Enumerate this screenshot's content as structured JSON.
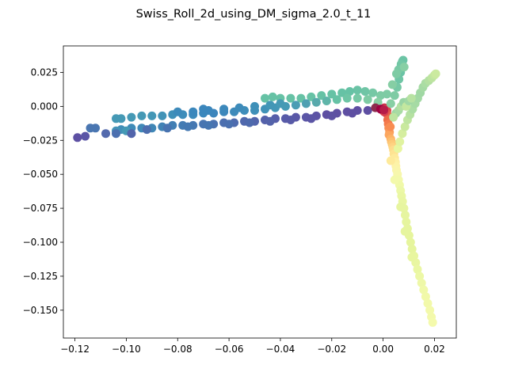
{
  "chart_data": {
    "type": "scatter",
    "title": "Swiss_Roll_2d_using_DM_sigma_2.0_t_11",
    "xlabel": "",
    "ylabel": "",
    "xlim": [
      -0.1245,
      0.0285
    ],
    "ylim": [
      -0.1705,
      0.0445
    ],
    "grid": false,
    "legend": "none",
    "colormap": "Spectral",
    "xticks": [
      -0.12,
      -0.1,
      -0.08,
      -0.06,
      -0.04,
      -0.02,
      0.0,
      0.02
    ],
    "xtick_labels": [
      "−0.12",
      "−0.10",
      "−0.08",
      "−0.06",
      "−0.04",
      "−0.02",
      "0.00",
      "0.02"
    ],
    "yticks": [
      0.025,
      0.0,
      -0.025,
      -0.05,
      -0.075,
      -0.1,
      -0.125,
      -0.15
    ],
    "ytick_labels": [
      "0.025",
      "0.000",
      "−0.025",
      "−0.050",
      "−0.075",
      "−0.100",
      "−0.125",
      "−0.150"
    ],
    "points": [
      [
        0.0005,
        -0.001,
        "#c7314b"
      ],
      [
        0.001,
        -0.002,
        "#d53e4f"
      ],
      [
        0.0015,
        -0.003,
        "#d8474d"
      ],
      [
        0.0012,
        -0.005,
        "#e0574a"
      ],
      [
        0.002,
        -0.007,
        "#e5604a"
      ],
      [
        0.0018,
        -0.01,
        "#ec6b46"
      ],
      [
        0.002,
        -0.013,
        "#f4794b"
      ],
      [
        0.0022,
        -0.016,
        "#f88c52"
      ],
      [
        0.0025,
        -0.019,
        "#fa9b58"
      ],
      [
        0.0023,
        -0.021,
        "#fca65f"
      ],
      [
        0.003,
        -0.024,
        "#fdb366"
      ],
      [
        0.0032,
        -0.026,
        "#fdbf6f"
      ],
      [
        0.0035,
        -0.028,
        "#fdca78"
      ],
      [
        0.0038,
        -0.03,
        "#fed382"
      ],
      [
        0.004,
        -0.032,
        "#fedc8c"
      ],
      [
        0.0042,
        -0.035,
        "#fee392"
      ],
      [
        0.0045,
        -0.038,
        "#feea9b"
      ],
      [
        0.0048,
        -0.041,
        "#fef0a4"
      ],
      [
        0.005,
        -0.044,
        "#fdf3a8"
      ],
      [
        0.0052,
        -0.047,
        "#faf5ab"
      ],
      [
        0.0056,
        -0.05,
        "#f7f7ad"
      ],
      [
        0.006,
        -0.054,
        "#f3f9ab"
      ],
      [
        0.0064,
        -0.058,
        "#f0f9a9"
      ],
      [
        0.0068,
        -0.062,
        "#ecf8a7"
      ],
      [
        0.0072,
        -0.066,
        "#eaf7a3"
      ],
      [
        0.0076,
        -0.07,
        "#e9f6a2"
      ],
      [
        0.0081,
        -0.075,
        "#e7f5a0"
      ],
      [
        0.0086,
        -0.08,
        "#e6f59f"
      ],
      [
        0.009,
        -0.085,
        "#e6f59e"
      ],
      [
        0.0095,
        -0.09,
        "#e6f59e"
      ],
      [
        0.0101,
        -0.095,
        "#e6f59d"
      ],
      [
        0.0107,
        -0.1,
        "#e6f59d"
      ],
      [
        0.0113,
        -0.105,
        "#e6f59d"
      ],
      [
        0.012,
        -0.11,
        "#e8f69f"
      ],
      [
        0.0127,
        -0.115,
        "#e9f6a1"
      ],
      [
        0.0134,
        -0.12,
        "#eaf7a3"
      ],
      [
        0.0142,
        -0.125,
        "#ecf8a6"
      ],
      [
        0.015,
        -0.13,
        "#eef8a8"
      ],
      [
        0.0158,
        -0.135,
        "#f0f9a9"
      ],
      [
        0.0166,
        -0.14,
        "#f1f9a9"
      ],
      [
        0.0174,
        -0.145,
        "#f2f9aa"
      ],
      [
        0.0182,
        -0.15,
        "#f3f9ab"
      ],
      [
        0.0188,
        -0.155,
        "#f3f9ab"
      ],
      [
        0.0193,
        -0.159,
        "#f4faac"
      ],
      [
        0.0085,
        -0.092,
        "#e6f59e"
      ],
      [
        0.0112,
        -0.111,
        "#e8f69f"
      ],
      [
        0.0068,
        -0.074,
        "#e7f5a0"
      ],
      [
        0.0045,
        -0.054,
        "#f3f9ab"
      ],
      [
        0.003,
        -0.04,
        "#feea9b"
      ],
      [
        0.0004,
        -0.004,
        "#d53e4f"
      ],
      [
        -0.0002,
        -0.003,
        "#d8474d"
      ],
      [
        0.0028,
        -0.015,
        "#f88c52"
      ],
      [
        0.0058,
        -0.031,
        "#e8f69f"
      ],
      [
        0.0065,
        -0.026,
        "#e0f3a0"
      ],
      [
        0.0075,
        -0.02,
        "#d5ee9f"
      ],
      [
        0.0085,
        -0.015,
        "#c9e99e"
      ],
      [
        0.0095,
        -0.01,
        "#bfe5a0"
      ],
      [
        0.0105,
        -0.006,
        "#b5e1a2"
      ],
      [
        0.0115,
        -0.002,
        "#abdda4"
      ],
      [
        0.0125,
        0.002,
        "#a6dba4"
      ],
      [
        0.0135,
        0.006,
        "#a2d9a4"
      ],
      [
        0.0145,
        0.01,
        "#a0d8a4"
      ],
      [
        0.0155,
        0.014,
        "#a5daa4"
      ],
      [
        0.0165,
        0.017,
        "#abdda4"
      ],
      [
        0.0178,
        0.019,
        "#b4e0a2"
      ],
      [
        0.019,
        0.021,
        "#bde4a0"
      ],
      [
        0.02,
        0.023,
        "#c4e79f"
      ],
      [
        0.0205,
        0.024,
        "#cbea9f"
      ],
      [
        0.005,
        -0.005,
        "#9fd7a4"
      ],
      [
        0.006,
        -0.003,
        "#a8dba4"
      ],
      [
        0.007,
        0.0,
        "#b2dfa2"
      ],
      [
        0.004,
        -0.008,
        "#bde4a0"
      ],
      [
        0.008,
        0.003,
        "#98d4a4"
      ],
      [
        0.009,
        0.0,
        "#c3e79f"
      ],
      [
        0.01,
        0.004,
        "#a0d8a4"
      ],
      [
        0.011,
        0.006,
        "#b7e2a2"
      ],
      [
        0.003,
        0.002,
        "#88cfa4"
      ],
      [
        0.0045,
        0.008,
        "#7ecba4"
      ],
      [
        0.0055,
        0.014,
        "#76c8a5"
      ],
      [
        0.0062,
        0.02,
        "#6fc5a5"
      ],
      [
        0.0068,
        0.025,
        "#6ac3a5"
      ],
      [
        0.0072,
        0.03,
        "#66c2a5"
      ],
      [
        0.0075,
        0.033,
        "#66c2a5"
      ],
      [
        0.0078,
        0.034,
        "#6bc4a5"
      ],
      [
        0.007,
        0.031,
        "#72c7a5"
      ],
      [
        0.006,
        0.027,
        "#78c9a5"
      ],
      [
        0.0052,
        0.024,
        "#7ecba4"
      ],
      [
        0.0082,
        0.029,
        "#88cfa4"
      ],
      [
        0.0036,
        0.016,
        "#86cea4"
      ],
      [
        0.0015,
        0.009,
        "#7ecba4"
      ],
      [
        -0.001,
        0.008,
        "#7ecba4"
      ],
      [
        -0.004,
        0.01,
        "#76c8a5"
      ],
      [
        -0.007,
        0.011,
        "#6fc5a5"
      ],
      [
        -0.01,
        0.012,
        "#6ac3a5"
      ],
      [
        -0.013,
        0.011,
        "#66c2a5"
      ],
      [
        -0.016,
        0.01,
        "#66c2a5"
      ],
      [
        -0.02,
        0.009,
        "#66c2a5"
      ],
      [
        -0.024,
        0.008,
        "#66c2a5"
      ],
      [
        -0.028,
        0.007,
        "#66c2a5"
      ],
      [
        -0.032,
        0.006,
        "#66c2a5"
      ],
      [
        -0.036,
        0.006,
        "#66c2a5"
      ],
      [
        -0.04,
        0.006,
        "#66c2a5"
      ],
      [
        -0.043,
        0.007,
        "#66c2a5"
      ],
      [
        -0.046,
        0.006,
        "#66c2a5"
      ],
      [
        -0.002,
        0.003,
        "#88cfa4"
      ],
      [
        -0.006,
        0.005,
        "#7ecba4"
      ],
      [
        -0.01,
        0.006,
        "#76c8a5"
      ],
      [
        -0.014,
        0.006,
        "#6ec5a5"
      ],
      [
        -0.018,
        0.005,
        "#66c2a5"
      ],
      [
        -0.022,
        0.004,
        "#5fb5a9"
      ],
      [
        -0.026,
        0.003,
        "#58a9ac"
      ],
      [
        -0.03,
        0.002,
        "#4fa0b2"
      ],
      [
        -0.034,
        0.001,
        "#4b9db4"
      ],
      [
        -0.038,
        0.0,
        "#469ab5"
      ],
      [
        -0.042,
        -0.001,
        "#4397b7"
      ],
      [
        -0.046,
        -0.002,
        "#4193b8"
      ],
      [
        -0.05,
        -0.003,
        "#3f90b8"
      ],
      [
        -0.054,
        -0.003,
        "#3e8dba"
      ],
      [
        -0.058,
        -0.004,
        "#3d8aba"
      ],
      [
        -0.062,
        -0.004,
        "#3c87bb"
      ],
      [
        -0.066,
        -0.005,
        "#3b85bc"
      ],
      [
        -0.07,
        -0.005,
        "#3b87bc"
      ],
      [
        -0.074,
        -0.006,
        "#3c8abb"
      ],
      [
        -0.078,
        -0.006,
        "#3e8dba"
      ],
      [
        -0.082,
        -0.006,
        "#3f90b8"
      ],
      [
        -0.086,
        -0.007,
        "#4193b7"
      ],
      [
        -0.09,
        -0.007,
        "#4397b6"
      ],
      [
        -0.094,
        -0.007,
        "#4599b5"
      ],
      [
        -0.098,
        -0.008,
        "#4599b5"
      ],
      [
        -0.102,
        -0.009,
        "#4599b5"
      ],
      [
        -0.104,
        -0.009,
        "#4599b5"
      ],
      [
        -0.05,
        0.0,
        "#3f90b8"
      ],
      [
        -0.056,
        -0.001,
        "#3d8bba"
      ],
      [
        -0.062,
        -0.002,
        "#3c88bb"
      ],
      [
        -0.068,
        -0.003,
        "#3b86bc"
      ],
      [
        -0.074,
        -0.004,
        "#3b87bc"
      ],
      [
        -0.08,
        -0.004,
        "#3d8aba"
      ],
      [
        -0.04,
        0.002,
        "#469ab5"
      ],
      [
        -0.044,
        0.001,
        "#4397b6"
      ],
      [
        -0.07,
        -0.002,
        "#3b86bc"
      ],
      [
        -0.01,
        -0.003,
        "#5e4fa2"
      ],
      [
        -0.014,
        -0.004,
        "#5e4fa2"
      ],
      [
        -0.018,
        -0.005,
        "#5e4fa2"
      ],
      [
        -0.022,
        -0.006,
        "#5e4fa2"
      ],
      [
        -0.026,
        -0.007,
        "#5c53a4"
      ],
      [
        -0.03,
        -0.008,
        "#5b56a6"
      ],
      [
        -0.034,
        -0.008,
        "#5a58a7"
      ],
      [
        -0.038,
        -0.009,
        "#585ba8"
      ],
      [
        -0.042,
        -0.009,
        "#565ea9"
      ],
      [
        -0.046,
        -0.01,
        "#5461aa"
      ],
      [
        -0.05,
        -0.011,
        "#5265ac"
      ],
      [
        -0.054,
        -0.011,
        "#5068ad"
      ],
      [
        -0.058,
        -0.012,
        "#4e6bae"
      ],
      [
        -0.062,
        -0.012,
        "#4c6faf"
      ],
      [
        -0.066,
        -0.013,
        "#4a72b0"
      ],
      [
        -0.07,
        -0.013,
        "#4875b1"
      ],
      [
        -0.074,
        -0.014,
        "#4678b2"
      ],
      [
        -0.078,
        -0.014,
        "#447cb3"
      ],
      [
        -0.082,
        -0.014,
        "#427fb4"
      ],
      [
        -0.086,
        -0.015,
        "#4082b5"
      ],
      [
        -0.09,
        -0.016,
        "#3f86b6"
      ],
      [
        -0.094,
        -0.016,
        "#3f88b7"
      ],
      [
        -0.098,
        -0.016,
        "#3f8bb8"
      ],
      [
        -0.102,
        -0.017,
        "#418fb8"
      ],
      [
        -0.104,
        -0.018,
        "#4493b7"
      ],
      [
        -0.1,
        -0.018,
        "#4499b5"
      ],
      [
        -0.104,
        -0.02,
        "#4b6faf"
      ],
      [
        -0.108,
        -0.02,
        "#536aad"
      ],
      [
        -0.112,
        -0.016,
        "#4a76b1"
      ],
      [
        -0.114,
        -0.016,
        "#4a76b1"
      ],
      [
        -0.116,
        -0.022,
        "#5a55a6"
      ],
      [
        -0.119,
        -0.023,
        "#5d50a3"
      ],
      [
        -0.098,
        -0.02,
        "#5164ab"
      ],
      [
        -0.092,
        -0.017,
        "#4c6dae"
      ],
      [
        -0.084,
        -0.016,
        "#4873b0"
      ],
      [
        -0.076,
        -0.015,
        "#4579b2"
      ],
      [
        -0.068,
        -0.014,
        "#4676b1"
      ],
      [
        -0.06,
        -0.013,
        "#4a70af"
      ],
      [
        -0.052,
        -0.012,
        "#4e6aad"
      ],
      [
        -0.044,
        -0.011,
        "#5463aa"
      ],
      [
        -0.036,
        -0.01,
        "#585aa7"
      ],
      [
        -0.028,
        -0.009,
        "#5b55a5"
      ],
      [
        -0.02,
        -0.007,
        "#5d51a3"
      ],
      [
        -0.012,
        -0.005,
        "#5e4fa2"
      ],
      [
        -0.006,
        -0.003,
        "#5e4fa2"
      ],
      [
        -0.003,
        -0.001,
        "#8e2b4e"
      ],
      [
        -0.001,
        -0.002,
        "#9e0142"
      ],
      [
        0.0003,
        -0.0025,
        "#b51c48"
      ]
    ]
  }
}
